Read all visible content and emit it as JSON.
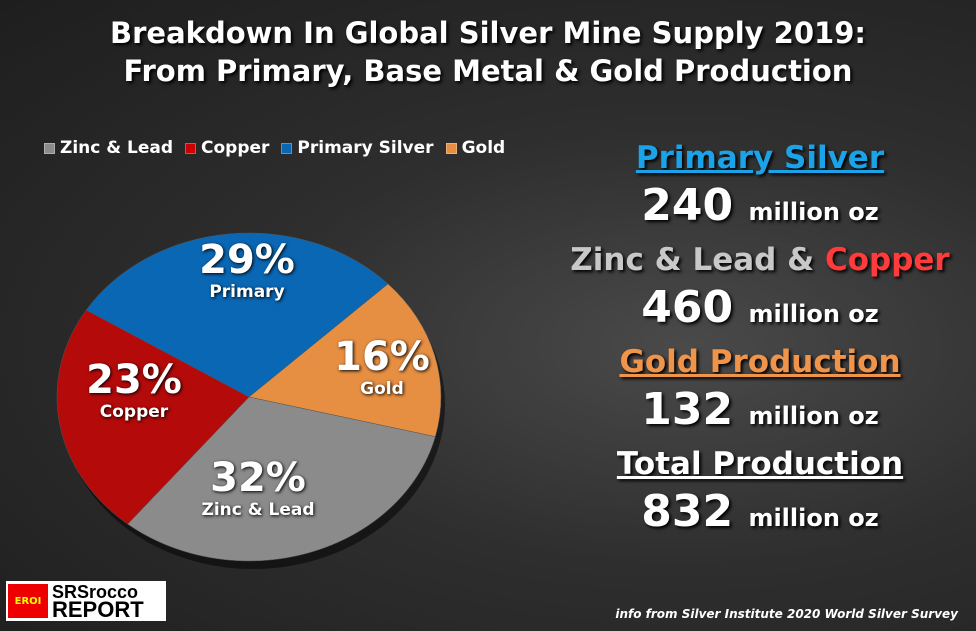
{
  "chart_data": {
    "type": "pie",
    "title": "Breakdown In Global Silver Mine Supply 2019:",
    "subtitle": "From Primary, Base Metal & Gold Production",
    "legend": [
      "Zinc & Lead",
      "Copper",
      "Primary Silver",
      "Gold"
    ],
    "legend_position": "top-left",
    "slices": [
      {
        "name": "Primary Silver",
        "label": "Primary",
        "value": 29,
        "pct": "29%",
        "color": "#0a67b4"
      },
      {
        "name": "Gold",
        "label": "Gold",
        "value": 16,
        "pct": "16%",
        "color": "#e68f43"
      },
      {
        "name": "Zinc & Lead",
        "label": "Zinc & Lead",
        "value": 32,
        "pct": "32%",
        "color": "#8b8b8b"
      },
      {
        "name": "Copper",
        "label": "Copper",
        "value": 23,
        "pct": "23%",
        "color": "#b40a0a"
      }
    ]
  },
  "stats": {
    "primary_title": "Primary Silver",
    "primary_value": "240",
    "unit": "million oz",
    "zl_title": "Zinc & Lead &",
    "copper_title": "Copper",
    "zl_value": "460",
    "gold_title": "Gold Production",
    "gold_value": "132",
    "total_title": "Total Production",
    "total_value": "832"
  },
  "source": "info from Silver Institute 2020 World Silver Survey",
  "logo": {
    "badge": "EROI",
    "line1": "SRSrocco",
    "line2": "REPORT"
  }
}
